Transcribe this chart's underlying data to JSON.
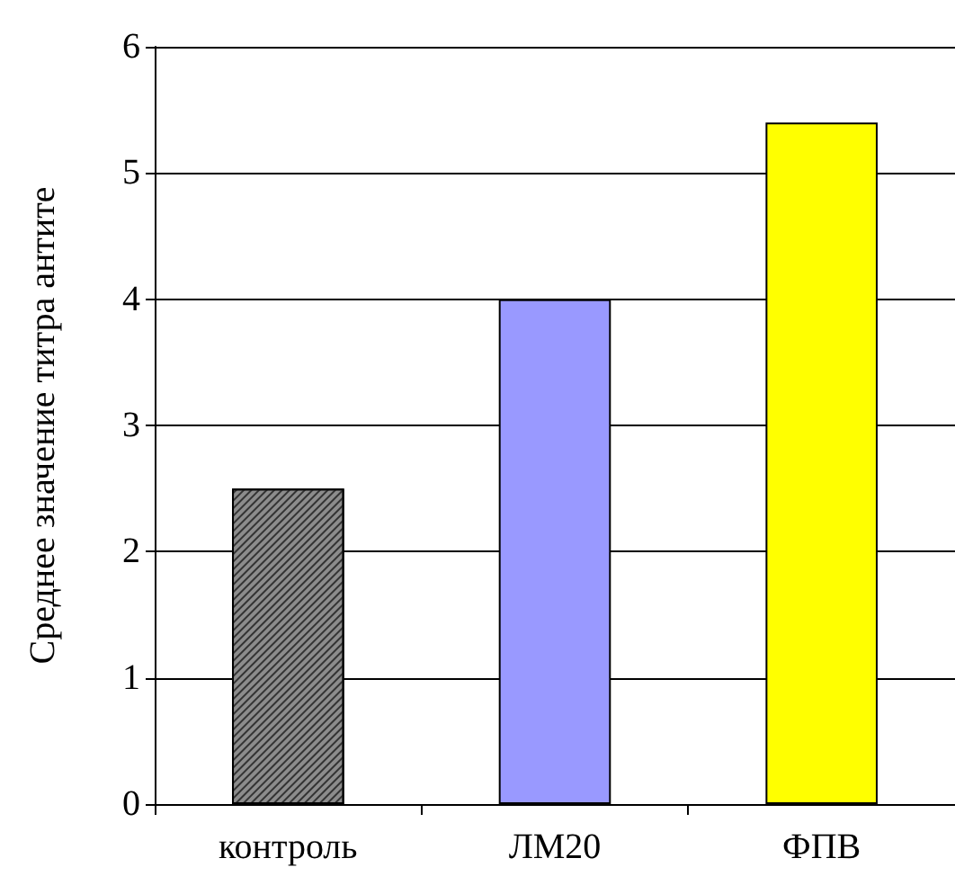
{
  "chart_data": {
    "type": "bar",
    "ylabel": "Среднее значение титра антите",
    "categories": [
      "контроль",
      "ЛМ20",
      "ФПВ"
    ],
    "values": [
      2.5,
      4,
      5.4
    ],
    "colors": [
      "#8c8c8c",
      "#9999ff",
      "#ffff00"
    ],
    "ylim": [
      0,
      6
    ],
    "yticks": [
      0,
      1,
      2,
      3,
      4,
      5,
      6
    ],
    "grid": "y"
  }
}
